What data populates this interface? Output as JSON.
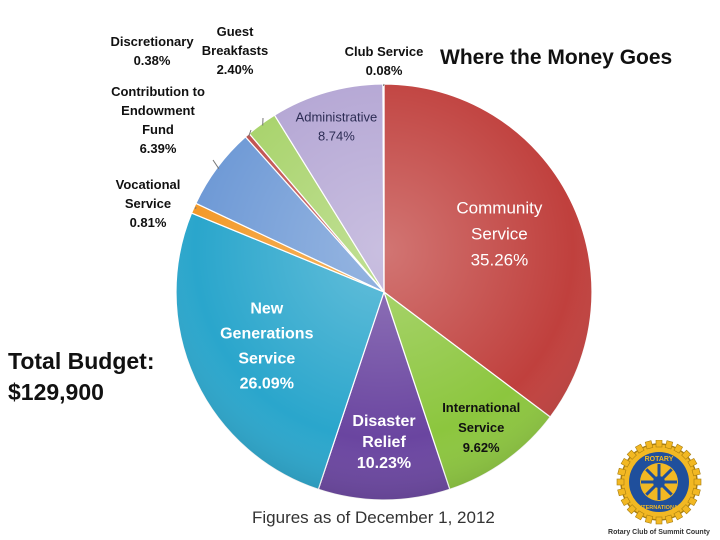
{
  "title": "Where the Money Goes",
  "total_budget": {
    "line1": "Total Budget:",
    "line2": "$129,900"
  },
  "footer": "Figures as of December 1, 2012",
  "logo": {
    "ring_top": "ROTARY",
    "ring_bottom": "INTERNATIONAL",
    "caption": "Rotary Club of Summit County"
  },
  "chart_data": {
    "type": "pie",
    "title": "Where the Money Goes",
    "unit": "%",
    "slices": [
      {
        "label": "Community Service",
        "value": 35.26,
        "display": "35.26%",
        "color": "#c0403d"
      },
      {
        "label": "International Service",
        "value": 9.62,
        "display": "9.62%",
        "color": "#8cc63e"
      },
      {
        "label": "Disaster Relief",
        "value": 10.23,
        "display": "10.23%",
        "color": "#6a45a0"
      },
      {
        "label": "New Generations Service",
        "value": 26.09,
        "display": "26.09%",
        "color": "#2aa6cc"
      },
      {
        "label": "Vocational Service",
        "value": 0.81,
        "display": "0.81%",
        "color": "#f39a2a"
      },
      {
        "label": "Contribution to Endowment Fund",
        "value": 6.39,
        "display": "6.39%",
        "color": "#6f9ad6"
      },
      {
        "label": "Discretionary",
        "value": 0.38,
        "display": "0.38%",
        "color": "#c0504d"
      },
      {
        "label": "Guest Breakfasts",
        "value": 2.4,
        "display": "2.40%",
        "color": "#a8d36b"
      },
      {
        "label": "Administrative",
        "value": 8.74,
        "display": "8.74%",
        "color": "#b4a6d4"
      },
      {
        "label": "Club Service",
        "value": 0.08,
        "display": "0.08%",
        "color": "#444444"
      }
    ],
    "label_lines": {
      "Community Service": [
        "Community",
        "Service"
      ],
      "International Service": [
        "International",
        "Service"
      ],
      "Disaster Relief": [
        "Disaster",
        "Relief"
      ],
      "New Generations Service": [
        "New",
        "Generations",
        "Service"
      ],
      "Vocational Service": [
        "Vocational",
        "Service"
      ],
      "Contribution to Endowment Fund": [
        "Contribution to",
        "Endowment",
        "Fund"
      ],
      "Discretionary": [
        "Discretionary"
      ],
      "Guest Breakfasts": [
        "Guest",
        "Breakfasts"
      ],
      "Administrative": [
        "Administrative"
      ],
      "Club Service": [
        "Club Service"
      ]
    }
  }
}
